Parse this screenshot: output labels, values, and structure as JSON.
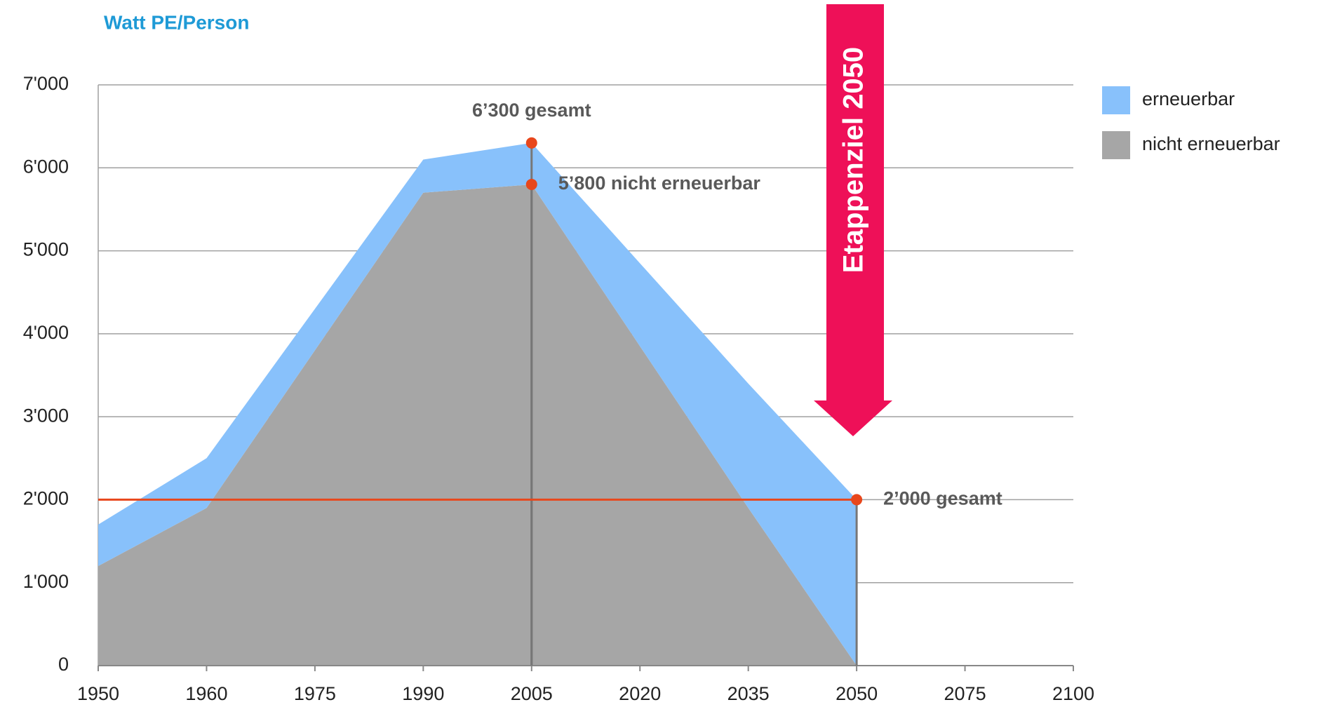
{
  "chart_data": {
    "type": "stacked_area",
    "title": "Watt PE/Person",
    "categories": [
      "1950",
      "1960",
      "1975",
      "1990",
      "2005",
      "2020",
      "2035",
      "2050",
      "2075",
      "2100"
    ],
    "series": [
      {
        "name": "nicht erneuerbar",
        "color": "#a6a6a6",
        "values": [
          1200,
          1900,
          3800,
          5700,
          5800,
          3850,
          1900,
          0,
          null,
          null
        ]
      },
      {
        "name": "erneuerbar",
        "color": "#88c1fb",
        "values": [
          500,
          600,
          500,
          400,
          500,
          1000,
          1500,
          2000,
          null,
          null
        ]
      }
    ],
    "ylim": [
      0,
      7000
    ],
    "yticks": [
      0,
      {
        "value": 1000,
        "label": "1'000"
      },
      {
        "value": 2000,
        "label": "2'000"
      },
      {
        "value": 3000,
        "label": "3'000"
      },
      {
        "value": 4000,
        "label": "4'000"
      },
      {
        "value": 5000,
        "label": "5'000"
      },
      {
        "value": 6000,
        "label": "6'000"
      },
      {
        "value": 7000,
        "label": "7'000"
      }
    ],
    "grid": true,
    "legend": "right",
    "reference_line": {
      "value": 2000,
      "color": "#e8471c"
    },
    "annotations": [
      {
        "text": "6’300 gesamt",
        "x": "2005",
        "y": 6300
      },
      {
        "text": "5’800 nicht erneuerbar",
        "x": "2005",
        "y": 5800
      },
      {
        "text": "2’000 gesamt",
        "x": "2050",
        "y": 2000
      }
    ],
    "milestone": {
      "text": "Etappenziel  2050",
      "color": "#ee1058"
    }
  }
}
